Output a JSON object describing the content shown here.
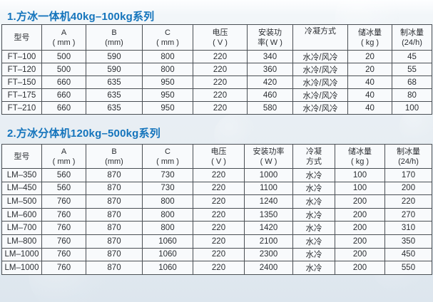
{
  "page": {
    "title_color": "#1474bc",
    "table_border_color": "#4a4f54",
    "cell_background": "#f8fafc",
    "background_color": "#e6edf2",
    "text_color": "#2b2e32"
  },
  "sections": [
    {
      "id": "ft-series",
      "title": "1.方冰一体机40kg–100kg系列",
      "columns": [
        {
          "line1": "型号",
          "line2": ""
        },
        {
          "line1": "A",
          "line2": "( mm )"
        },
        {
          "line1": "B",
          "line2": "(mm)"
        },
        {
          "line1": "C",
          "line2": "( mm )"
        },
        {
          "line1": "电压",
          "line2": "( V )"
        },
        {
          "line1": "安装功",
          "line2": "率( W )"
        },
        {
          "line1": "冷凝方式",
          "line2": "",
          "valign": "top"
        },
        {
          "line1": "储冰量",
          "line2": "( kg )"
        },
        {
          "line1": "制冰量",
          "line2": "(24/h)"
        }
      ],
      "rows": [
        [
          "FT–100",
          "500",
          "590",
          "800",
          "220",
          "340",
          "水冷/风冷",
          "20",
          "45"
        ],
        [
          "FT–120",
          "500",
          "590",
          "800",
          "220",
          "360",
          "水冷/风冷",
          "20",
          "55"
        ],
        [
          "FT–150",
          "660",
          "635",
          "950",
          "220",
          "420",
          "水冷/风冷",
          "40",
          "68"
        ],
        [
          "FT–175",
          "660",
          "635",
          "950",
          "220",
          "460",
          "水冷/风冷",
          "40",
          "80"
        ],
        [
          "FT–210",
          "660",
          "635",
          "950",
          "220",
          "580",
          "水冷/风冷",
          "40",
          "100"
        ]
      ]
    },
    {
      "id": "lm-series",
      "title": "2.方冰分体机120kg–500kg系列",
      "columns": [
        {
          "line1": "型号",
          "line2": ""
        },
        {
          "line1": "A",
          "line2": "( mm )"
        },
        {
          "line1": "B",
          "line2": "(mm)"
        },
        {
          "line1": "C",
          "line2": "( mm )"
        },
        {
          "line1": "电压",
          "line2": "( V )"
        },
        {
          "line1": "安装功率",
          "line2": "( W )"
        },
        {
          "line1": "冷凝",
          "line2": "方式"
        },
        {
          "line1": "储冰量",
          "line2": "( kg )"
        },
        {
          "line1": "制冰量",
          "line2": "(24/h)"
        }
      ],
      "rows": [
        [
          "LM–350",
          "560",
          "870",
          "730",
          "220",
          "1000",
          "水冷",
          "100",
          "170"
        ],
        [
          "LM–450",
          "560",
          "870",
          "730",
          "220",
          "1100",
          "水冷",
          "100",
          "200"
        ],
        [
          "LM–500",
          "760",
          "870",
          "800",
          "220",
          "1240",
          "水冷",
          "200",
          "220"
        ],
        [
          "LM–600",
          "760",
          "870",
          "800",
          "220",
          "1350",
          "水冷",
          "200",
          "270"
        ],
        [
          "LM–700",
          "760",
          "870",
          "800",
          "220",
          "1420",
          "水冷",
          "200",
          "310"
        ],
        [
          "LM–800",
          "760",
          "870",
          "1060",
          "220",
          "2100",
          "水冷",
          "200",
          "350"
        ],
        [
          "LM–1000",
          "760",
          "870",
          "1060",
          "220",
          "2300",
          "水冷",
          "200",
          "450"
        ],
        [
          "LM–1000",
          "760",
          "870",
          "1060",
          "220",
          "2400",
          "水冷",
          "200",
          "550"
        ]
      ]
    }
  ]
}
